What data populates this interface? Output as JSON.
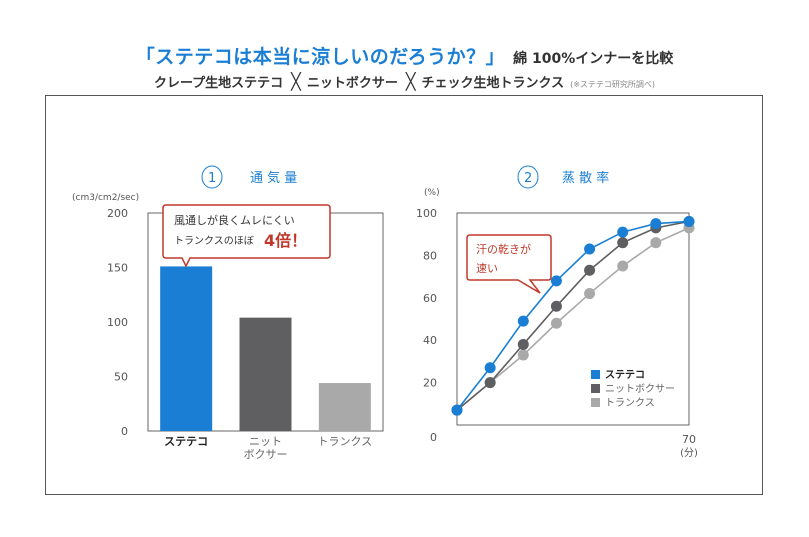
{
  "header": {
    "title": "「ステテコは本当に涼しいのだろうか？」",
    "title_suffix": "綿 100%インナーを比較",
    "subtitle_items": [
      "クレープ生地ステテコ",
      "ニットボクサー",
      "チェック生地トランクス"
    ],
    "subtitle_separator": "╳",
    "subtitle_note": "(※ステテコ研究所調べ)"
  },
  "colors": {
    "accent": "#1a7fd4",
    "dark": "#555555",
    "light": "#a9a9a9",
    "callout": "#c0392b"
  },
  "chart_data": [
    {
      "type": "bar",
      "panel_number": "1",
      "title": "通 気 量",
      "ylabel": "(cm3/cm2/sec)",
      "ylim": [
        0,
        200
      ],
      "yticks": [
        "0",
        "50",
        "100",
        "150",
        "200"
      ],
      "categories": [
        "ステテコ",
        "ニット\nボクサー",
        "トランクス"
      ],
      "values": [
        151,
        104,
        44
      ],
      "bar_colors": [
        "#1a7fd4",
        "#5f5f61",
        "#a9a9a9"
      ],
      "callout": {
        "line1": "風通しが良くムレにくい",
        "line2": "トランクスのほぼ",
        "emphasis": "4倍！"
      }
    },
    {
      "type": "line",
      "panel_number": "2",
      "title": "蒸 散 率",
      "ylabel": "(%)",
      "ylim": [
        0,
        100
      ],
      "xlim": [
        0,
        70
      ],
      "yticks": [
        "0",
        "20",
        "40",
        "60",
        "80",
        "100"
      ],
      "x_tick_label": "70",
      "x_unit": "(分)",
      "x": [
        0,
        10,
        20,
        30,
        40,
        50,
        60,
        70
      ],
      "series": [
        {
          "name": "ステテコ",
          "color": "#1a7fd4",
          "values": [
            7,
            27,
            49,
            68,
            83,
            91,
            95,
            96
          ]
        },
        {
          "name": "ニットボクサー",
          "color": "#5f5f61",
          "values": [
            7,
            20,
            38,
            56,
            73,
            86,
            93,
            96
          ]
        },
        {
          "name": "トランクス",
          "color": "#a9a9a9",
          "values": [
            7,
            20,
            33,
            48,
            62,
            75,
            86,
            93
          ]
        }
      ],
      "callout": {
        "line1": "汗の乾きが",
        "line2": "速い"
      }
    }
  ]
}
